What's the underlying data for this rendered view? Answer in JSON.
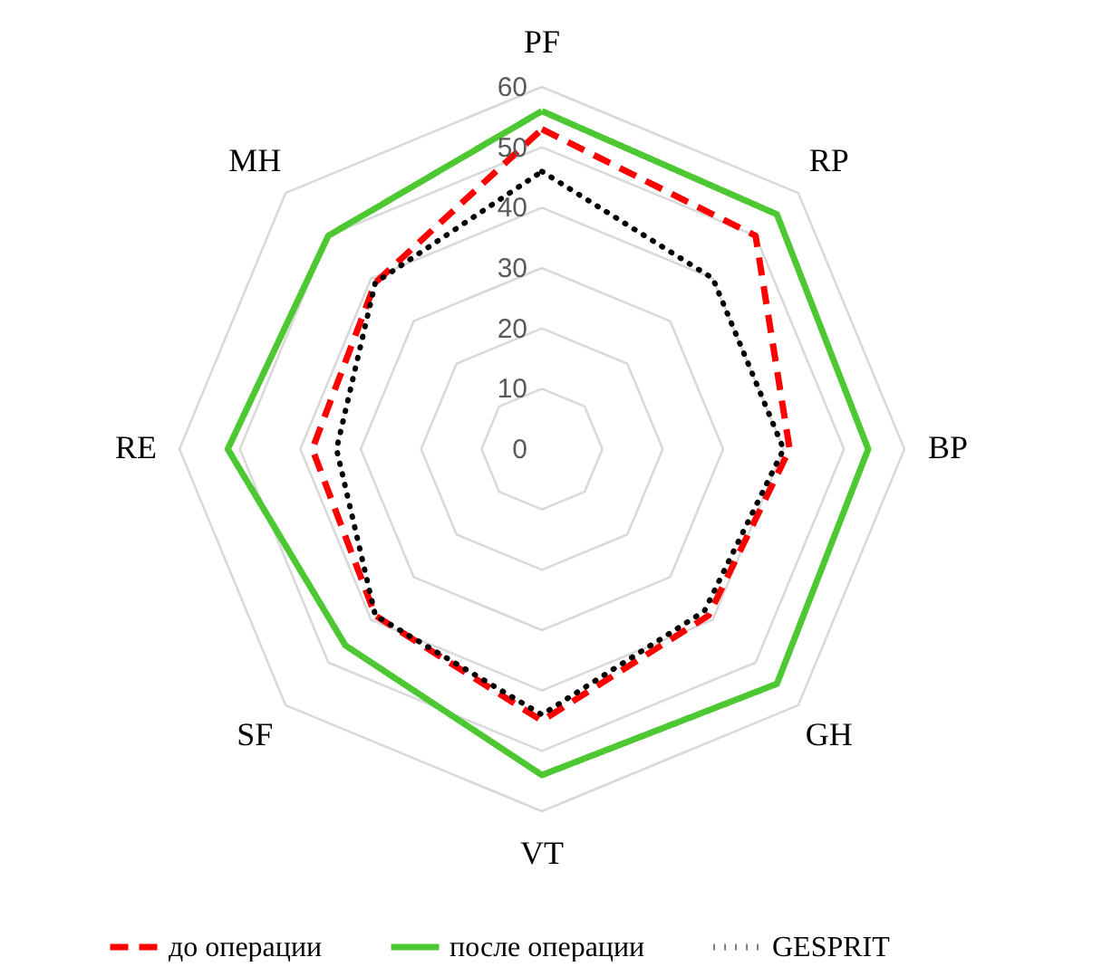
{
  "chart_data": {
    "type": "radar",
    "categories": [
      "PF",
      "RP",
      "BP",
      "GH",
      "VT",
      "SF",
      "RE",
      "MH"
    ],
    "series": [
      {
        "name": "до операции",
        "color": "#ff0000",
        "line_style": "dashed",
        "values": [
          53,
          50,
          41,
          39,
          45,
          39,
          38,
          39
        ]
      },
      {
        "name": "после операции",
        "color": "#4dc832",
        "line_style": "solid",
        "values": [
          56,
          55,
          54,
          55,
          54,
          46,
          52,
          50
        ]
      },
      {
        "name": "GESPRIT",
        "color": "#000000",
        "line_style": "dotted",
        "values": [
          46,
          40,
          40,
          38,
          44,
          39,
          34,
          39
        ]
      }
    ],
    "ylim": [
      0,
      60
    ],
    "yticks": [
      0,
      10,
      20,
      30,
      40,
      50,
      60
    ],
    "grid": true,
    "legend": "bottom"
  }
}
